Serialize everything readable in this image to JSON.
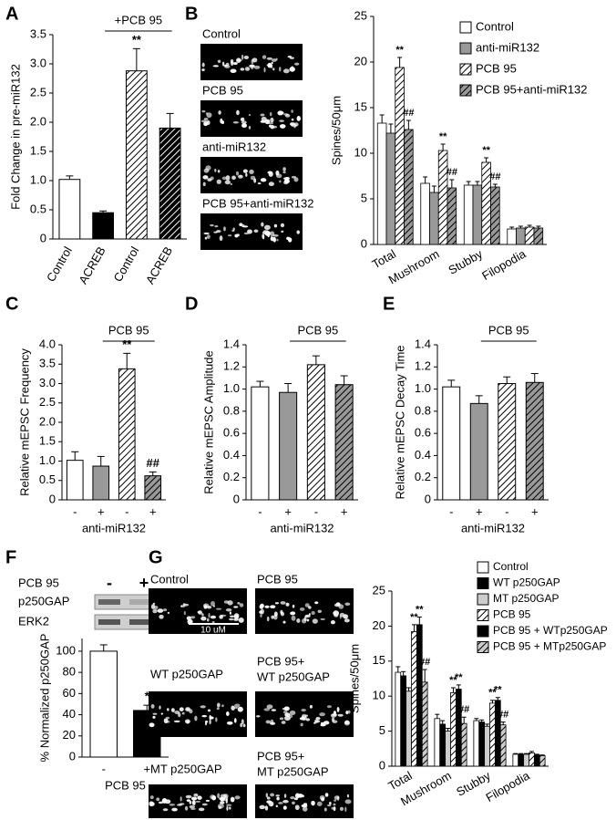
{
  "chart_data": [
    {
      "type": "bar",
      "panel": "A",
      "y_label": "Fold Change in pre-miR132",
      "categories": [
        "Control",
        "ACREB",
        "Control",
        "ACREB"
      ],
      "values": [
        1.02,
        0.45,
        2.88,
        1.9
      ],
      "errors": [
        0.06,
        0.03,
        0.38,
        0.25
      ],
      "colors": [
        "#ffffff",
        "#000000",
        "#ffffff",
        "#000000"
      ],
      "hatch": [
        false,
        false,
        true,
        true
      ],
      "significance": [
        null,
        null,
        "**",
        null
      ],
      "bracket_label": "+PCB 95",
      "ylim": [
        0,
        3.5
      ],
      "yticks": [
        0,
        0.5,
        {
          "value": 1,
          "label": "1.0"
        },
        1.5,
        {
          "value": 2,
          "label": "2.0"
        },
        2.5,
        {
          "value": 3,
          "label": "3.0"
        },
        3.5
      ]
    },
    {
      "type": "grouped-bar",
      "panel": "B",
      "y_label": "Spines/50μm",
      "image_labels": [
        [
          "Control"
        ],
        [
          "PCB 95"
        ],
        [
          "anti-miR132"
        ],
        [
          "PCB 95+anti-miR132"
        ]
      ],
      "categories": [
        "Total",
        "Mushroom",
        "Stubby",
        "Filopodia"
      ],
      "series": [
        {
          "name": "Control",
          "color": "#ffffff",
          "hatch": false,
          "values": [
            13.3,
            6.7,
            6.5,
            1.7
          ],
          "errors": [
            0.9,
            0.7,
            0.4,
            0.2
          ]
        },
        {
          "name": "anti-miR132",
          "color": "#999999",
          "hatch": false,
          "values": [
            12.2,
            5.7,
            6.5,
            1.8
          ],
          "errors": [
            1.0,
            0.7,
            0.4,
            0.2
          ]
        },
        {
          "name": "PCB 95",
          "color": "#ffffff",
          "hatch": true,
          "values": [
            19.4,
            10.3,
            9.0,
            1.9
          ],
          "errors": [
            1.1,
            0.7,
            0.5,
            0.2
          ],
          "significance": [
            "**",
            "**",
            "**",
            null
          ]
        },
        {
          "name": "PCB 95+anti-miR132",
          "color": "#999999",
          "hatch": true,
          "values": [
            12.6,
            6.2,
            6.3,
            1.8
          ],
          "errors": [
            1.0,
            0.9,
            0.3,
            0.2
          ],
          "significance": [
            "##",
            "##",
            "##",
            null
          ]
        }
      ],
      "ylim": [
        0,
        25
      ],
      "yticks": [
        0,
        5,
        10,
        15,
        20,
        25
      ]
    },
    {
      "type": "bar",
      "panel": "C",
      "y_label": "Relative mEPSC Frequency",
      "x_label": "anti-miR132",
      "categories": [
        "-",
        "+",
        "-",
        "+"
      ],
      "values": [
        1.02,
        0.87,
        3.38,
        0.62
      ],
      "errors": [
        0.22,
        0.25,
        0.4,
        0.1
      ],
      "colors": [
        "#ffffff",
        "#999999",
        "#ffffff",
        "#999999"
      ],
      "hatch": [
        false,
        false,
        true,
        true
      ],
      "significance": [
        null,
        null,
        "**",
        "##"
      ],
      "bracket_label": "PCB 95",
      "ylim": [
        0,
        4
      ],
      "yticks": [
        0,
        0.5,
        {
          "value": 1,
          "label": "1.0"
        },
        1.5,
        {
          "value": 2,
          "label": "2.0"
        },
        2.5,
        {
          "value": 3,
          "label": "3.0"
        },
        3.5,
        {
          "value": 4,
          "label": "4.0"
        }
      ]
    },
    {
      "type": "bar",
      "panel": "D",
      "y_label": "Relative mEPSC Amplitude",
      "x_label": "anti-miR132",
      "categories": [
        "-",
        "+",
        "-",
        "+"
      ],
      "values": [
        1.02,
        0.97,
        1.22,
        1.04
      ],
      "errors": [
        0.05,
        0.08,
        0.08,
        0.08
      ],
      "colors": [
        "#ffffff",
        "#999999",
        "#ffffff",
        "#999999"
      ],
      "hatch": [
        false,
        false,
        true,
        true
      ],
      "bracket_label": "PCB 95",
      "ylim": [
        0,
        1.4
      ],
      "yticks": [
        0,
        0.2,
        0.4,
        0.6,
        0.8,
        {
          "value": 1,
          "label": "1.0"
        },
        1.2,
        1.4
      ]
    },
    {
      "type": "bar",
      "panel": "E",
      "y_label": "Relative mEPSC Decay Time",
      "x_label": "anti-miR132",
      "categories": [
        "-",
        "+",
        "-",
        "+"
      ],
      "values": [
        1.02,
        0.87,
        1.05,
        1.06
      ],
      "errors": [
        0.06,
        0.07,
        0.06,
        0.08
      ],
      "colors": [
        "#ffffff",
        "#999999",
        "#ffffff",
        "#999999"
      ],
      "hatch": [
        false,
        false,
        true,
        true
      ],
      "bracket_label": "PCB 95",
      "ylim": [
        0,
        1.4
      ],
      "yticks": [
        0,
        0.2,
        0.4,
        0.6,
        0.8,
        {
          "value": 1,
          "label": "1.0"
        },
        1.2,
        1.4
      ]
    },
    {
      "type": "bar",
      "panel": "F",
      "y_label": "% Normalized p250GAP",
      "x_label": "PCB 95",
      "blot": {
        "treatment_label": "PCB 95",
        "lanes": [
          "-",
          "+"
        ],
        "rows": [
          "p250GAP",
          "ERK2"
        ]
      },
      "categories": [
        "-",
        "+"
      ],
      "values": [
        100,
        44
      ],
      "errors": [
        6,
        5
      ],
      "colors": [
        "#ffffff",
        "#000000"
      ],
      "hatch": [
        false,
        false
      ],
      "significance": [
        null,
        "*"
      ],
      "ylim": [
        0,
        112
      ],
      "yticks": [
        0,
        20,
        40,
        60,
        80,
        100
      ]
    },
    {
      "type": "grouped-bar",
      "panel": "G",
      "y_label": "Spines/50μm",
      "image_labels": [
        [
          "Control"
        ],
        [
          "PCB 95"
        ],
        [
          "WT p250GAP"
        ],
        [
          "PCB 95+",
          "WT p250GAP"
        ],
        [
          "MT p250GAP"
        ],
        [
          "PCB 95+",
          "MT p250GAP"
        ]
      ],
      "scale_bar_label": "10 uM",
      "categories": [
        "Total",
        "Mushroom",
        "Stubby",
        "Filopodia"
      ],
      "series": [
        {
          "name": "Control",
          "color": "#ffffff",
          "hatch": false,
          "values": [
            13.4,
            6.8,
            6.5,
            1.7
          ],
          "errors": [
            0.8,
            0.6,
            0.3,
            0.1
          ]
        },
        {
          "name": "WT p250GAP",
          "color": "#000000",
          "hatch": false,
          "values": [
            12.9,
            6.0,
            6.3,
            1.7
          ],
          "errors": [
            0.6,
            0.5,
            0.3,
            0.1
          ]
        },
        {
          "name": "MT p250GAP",
          "color": "#cccccc",
          "hatch": false,
          "values": [
            10.7,
            5.0,
            5.7,
            1.7
          ],
          "errors": [
            0.5,
            0.4,
            0.3,
            0.1
          ]
        },
        {
          "name": "PCB 95",
          "color": "#ffffff",
          "hatch": true,
          "values": [
            19.2,
            10.5,
            9.0,
            1.9
          ],
          "errors": [
            1.0,
            0.7,
            0.4,
            0.2
          ],
          "significance": [
            "**",
            "**",
            "**",
            null
          ]
        },
        {
          "name": "PCB 95 + WTp250GAP",
          "color": "#000000",
          "hatch": false,
          "values": [
            20.2,
            11.0,
            9.4,
            1.6
          ],
          "errors": [
            1.1,
            0.6,
            0.4,
            0.1
          ],
          "significance": [
            "**",
            "**",
            "**",
            null
          ]
        },
        {
          "name": "PCB 95 + MTp250GAP",
          "color": "#cccccc",
          "hatch": true,
          "values": [
            12.0,
            6.1,
            5.9,
            1.5
          ],
          "errors": [
            1.8,
            0.9,
            0.4,
            0.1
          ],
          "significance": [
            "##",
            "##",
            "##",
            null
          ]
        }
      ],
      "ylim": [
        0,
        25
      ],
      "yticks": [
        0,
        5,
        10,
        15,
        20,
        25
      ]
    }
  ]
}
